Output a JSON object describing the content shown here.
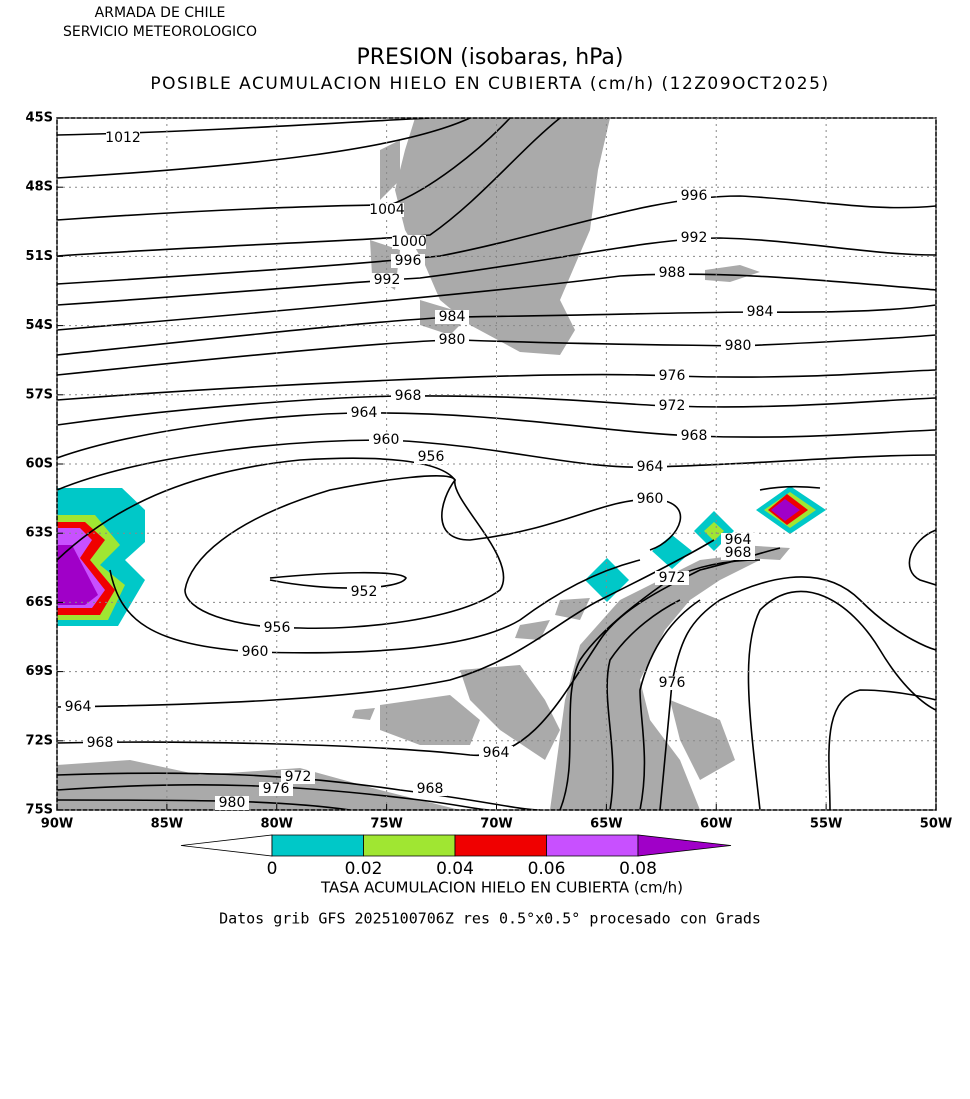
{
  "header": {
    "line1": "ARMADA DE CHILE",
    "line2": "SERVICIO METEOROLOGICO"
  },
  "title": "PRESION (isobaras, hPa)",
  "subtitle": "POSIBLE ACUMULACION HIELO EN CUBIERTA (cm/h) (12Z09OCT2025)",
  "map": {
    "lon_range": [
      -90,
      -50
    ],
    "lat_range": [
      -45,
      -75
    ],
    "lon_ticks": [
      {
        "value": -90,
        "label": "90W"
      },
      {
        "value": -85,
        "label": "85W"
      },
      {
        "value": -80,
        "label": "80W"
      },
      {
        "value": -75,
        "label": "75W"
      },
      {
        "value": -70,
        "label": "70W"
      },
      {
        "value": -65,
        "label": "65W"
      },
      {
        "value": -60,
        "label": "60W"
      },
      {
        "value": -55,
        "label": "55W"
      },
      {
        "value": -50,
        "label": "50W"
      }
    ],
    "lat_ticks": [
      {
        "value": -45,
        "label": "45S"
      },
      {
        "value": -48,
        "label": "48S"
      },
      {
        "value": -51,
        "label": "51S"
      },
      {
        "value": -54,
        "label": "54S"
      },
      {
        "value": -57,
        "label": "57S"
      },
      {
        "value": -60,
        "label": "60S"
      },
      {
        "value": -63,
        "label": "63S"
      },
      {
        "value": -66,
        "label": "66S"
      },
      {
        "value": -69,
        "label": "69S"
      },
      {
        "value": -72,
        "label": "72S"
      },
      {
        "value": -75,
        "label": "75S"
      }
    ],
    "isobar_labels": [
      "1012",
      "1004",
      "1000",
      "996",
      "992",
      "984",
      "980",
      "968",
      "964",
      "960",
      "956",
      "952",
      "956",
      "960",
      "964",
      "968",
      "972",
      "976",
      "980",
      "968",
      "964",
      "996",
      "992",
      "988",
      "984",
      "980",
      "976",
      "972",
      "968",
      "964",
      "960",
      "964",
      "968",
      "972",
      "976"
    ]
  },
  "colorbar": {
    "colors": [
      "#ffffff",
      "#00c8c8",
      "#a0e632",
      "#f00000",
      "#c850ff",
      "#a000c8"
    ],
    "labels": [
      "0",
      "0.02",
      "0.04",
      "0.06",
      "0.08"
    ],
    "title": "TASA ACUMULACION HIELO EN CUBIERTA (cm/h)"
  },
  "footer": "Datos grib GFS 2025100706Z res 0.5°x0.5° procesado con Grads"
}
